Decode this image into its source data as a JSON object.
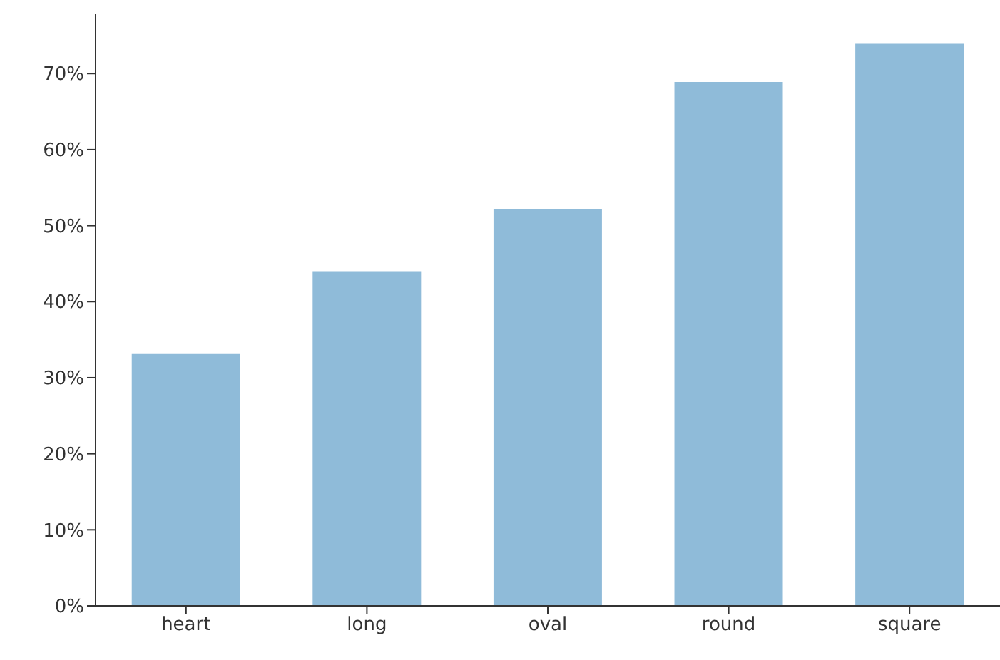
{
  "chart_data": {
    "type": "bar",
    "categories": [
      "heart",
      "long",
      "oval",
      "round",
      "square"
    ],
    "values": [
      33.2,
      44.0,
      52.2,
      68.9,
      73.9
    ],
    "color": "#8fbbd9",
    "ylim": [
      0,
      77.8
    ],
    "yticks": [
      {
        "value": 0,
        "label": "0%"
      },
      {
        "value": 10,
        "label": "10%"
      },
      {
        "value": 20,
        "label": "20%"
      },
      {
        "value": 30,
        "label": "30%"
      },
      {
        "value": 40,
        "label": "40%"
      },
      {
        "value": 50,
        "label": "50%"
      },
      {
        "value": 60,
        "label": "60%"
      },
      {
        "value": 70,
        "label": "70%"
      }
    ],
    "grid": false
  }
}
